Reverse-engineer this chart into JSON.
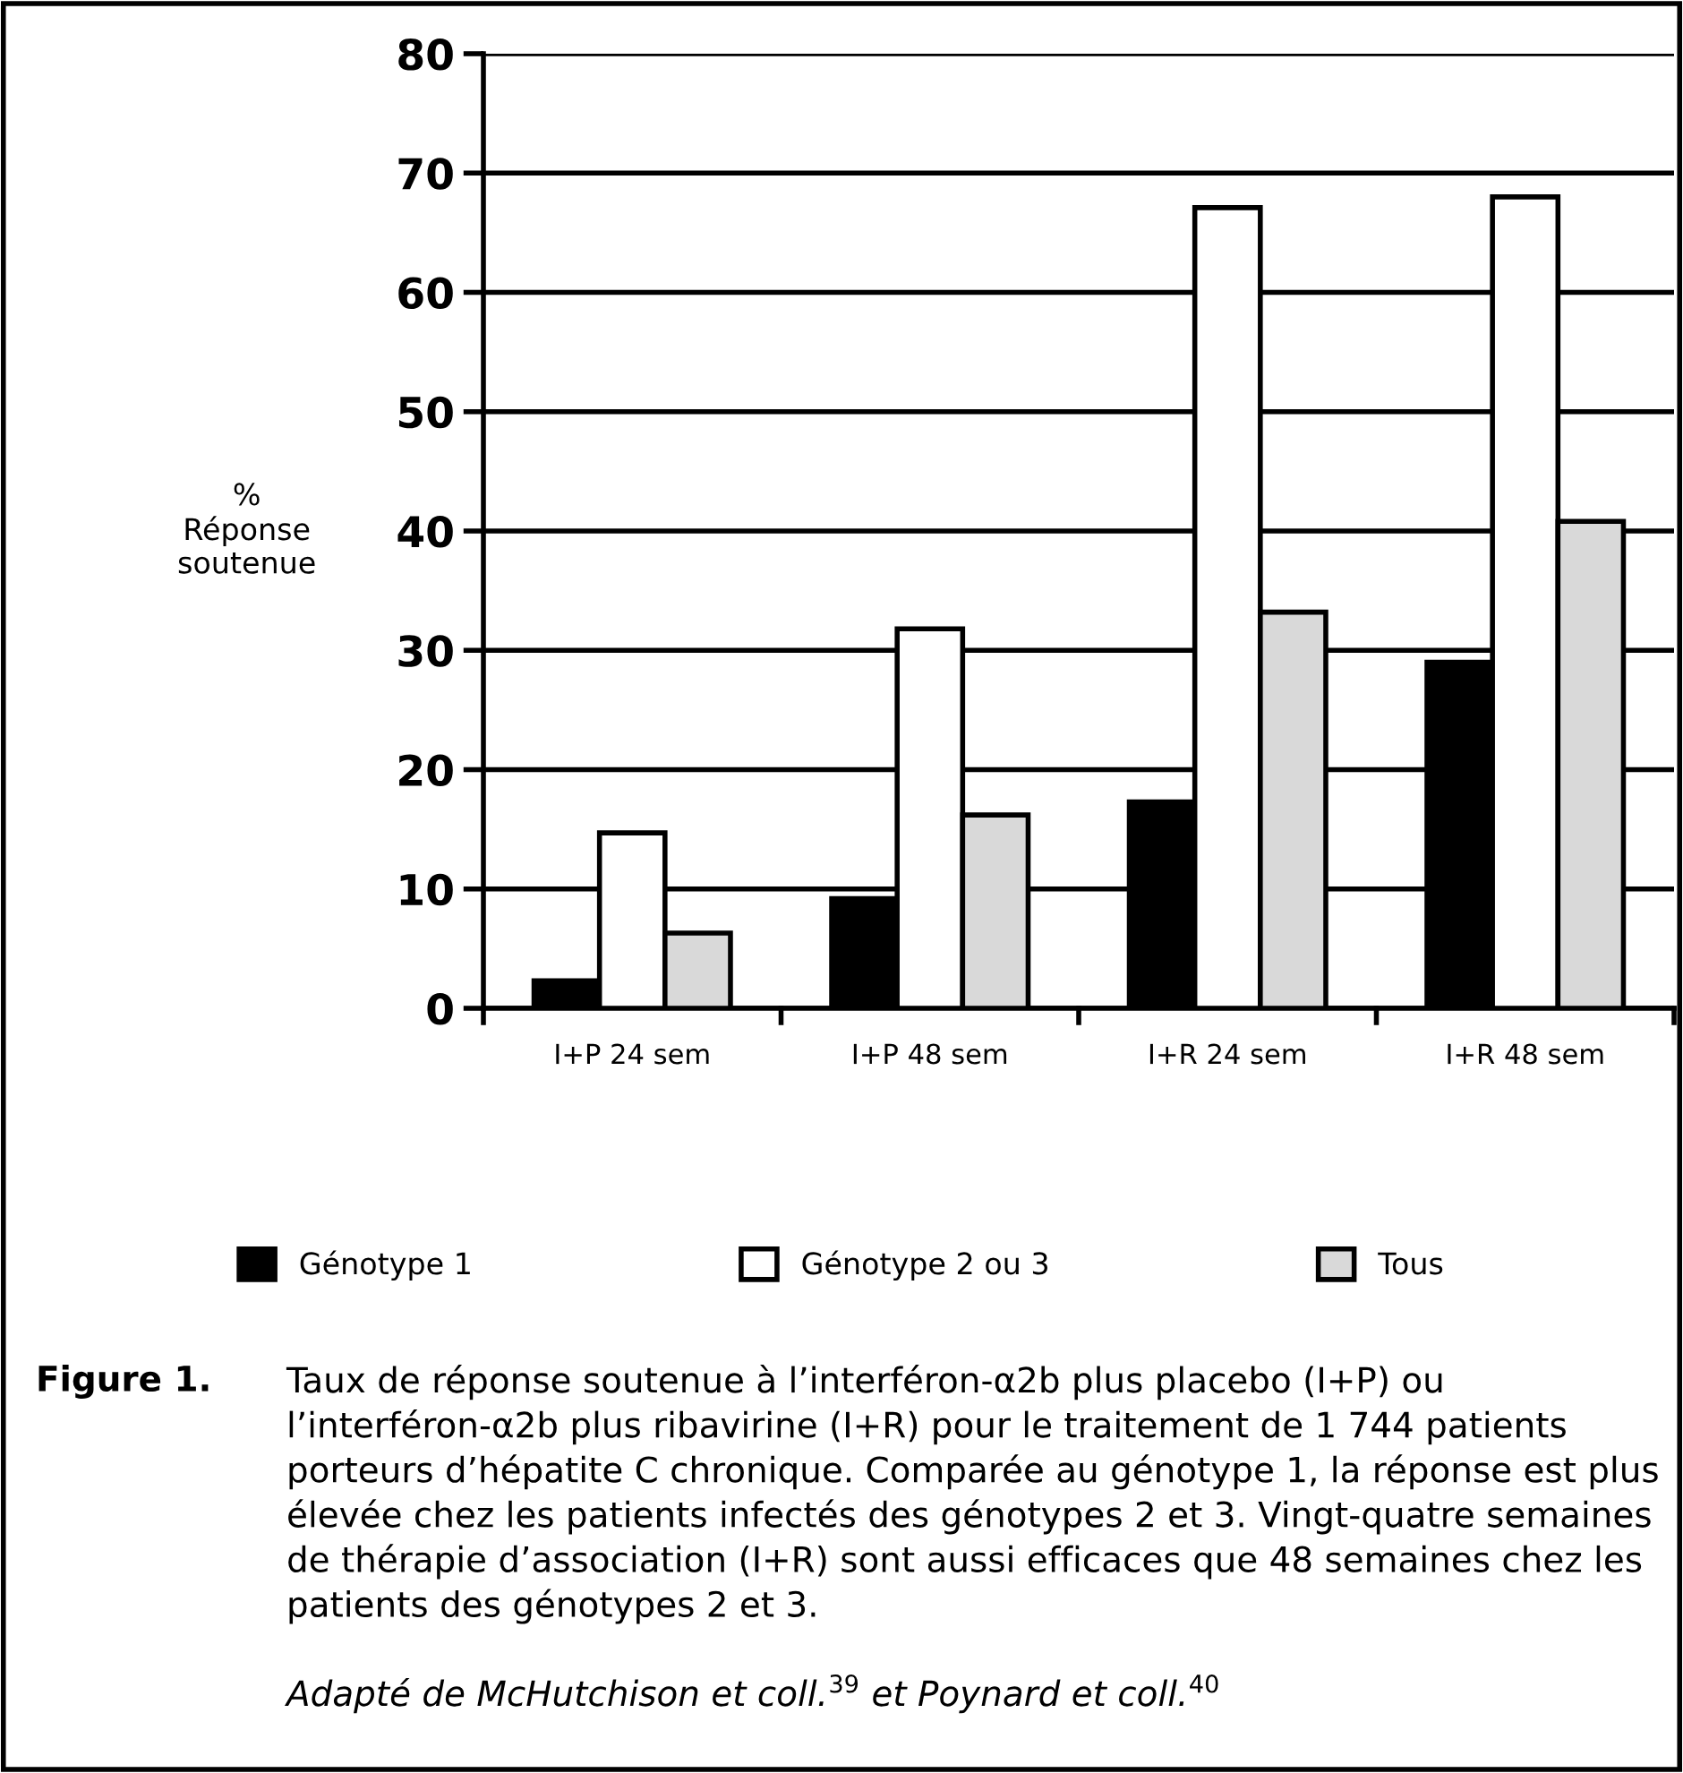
{
  "chart_data": {
    "type": "bar",
    "ylabel": "%\nRéponse\nsoutenue",
    "categories": [
      "I+P 24 sem",
      "I+P 48 sem",
      "I+R 24 sem",
      "I+R 48 sem"
    ],
    "series": [
      {
        "name": "Génotype 1",
        "color": "#000000",
        "values": [
          2.3,
          9.2,
          17.3,
          29
        ]
      },
      {
        "name": "Génotype 2 ou 3",
        "color": "#ffffff",
        "values": [
          14.7,
          31.8,
          67.1,
          68
        ]
      },
      {
        "name": "Tous",
        "color": "#d9d9d9",
        "values": [
          6.3,
          16.2,
          33.2,
          40.8
        ]
      }
    ],
    "ylim": [
      0,
      80
    ],
    "yticks": [
      0,
      10,
      20,
      30,
      40,
      50,
      60,
      70,
      80
    ],
    "grid": "y",
    "legend": "bottom",
    "annotations": [
      "Figure 1.",
      "Taux de réponse soutenue à l’interféron-α2b plus placebo (I+P) ou l’interféron-α2b plus ribavirine (I+R) pour le traitement de 1 744 patients porteurs d’hépatite C chronique. Comparée au génotype 1, la réponse est plus élevée chez les patients infectés des génotypes 2 et 3. Vingt-quatre semaines de thérapie d’association (I+R) sont aussi efficaces que 48 semaines chez les patients des génotypes 2 et 3.",
      "Adapté de McHutchison et coll.$^{39}$ et Poynard et coll.$^{40}$"
    ]
  }
}
